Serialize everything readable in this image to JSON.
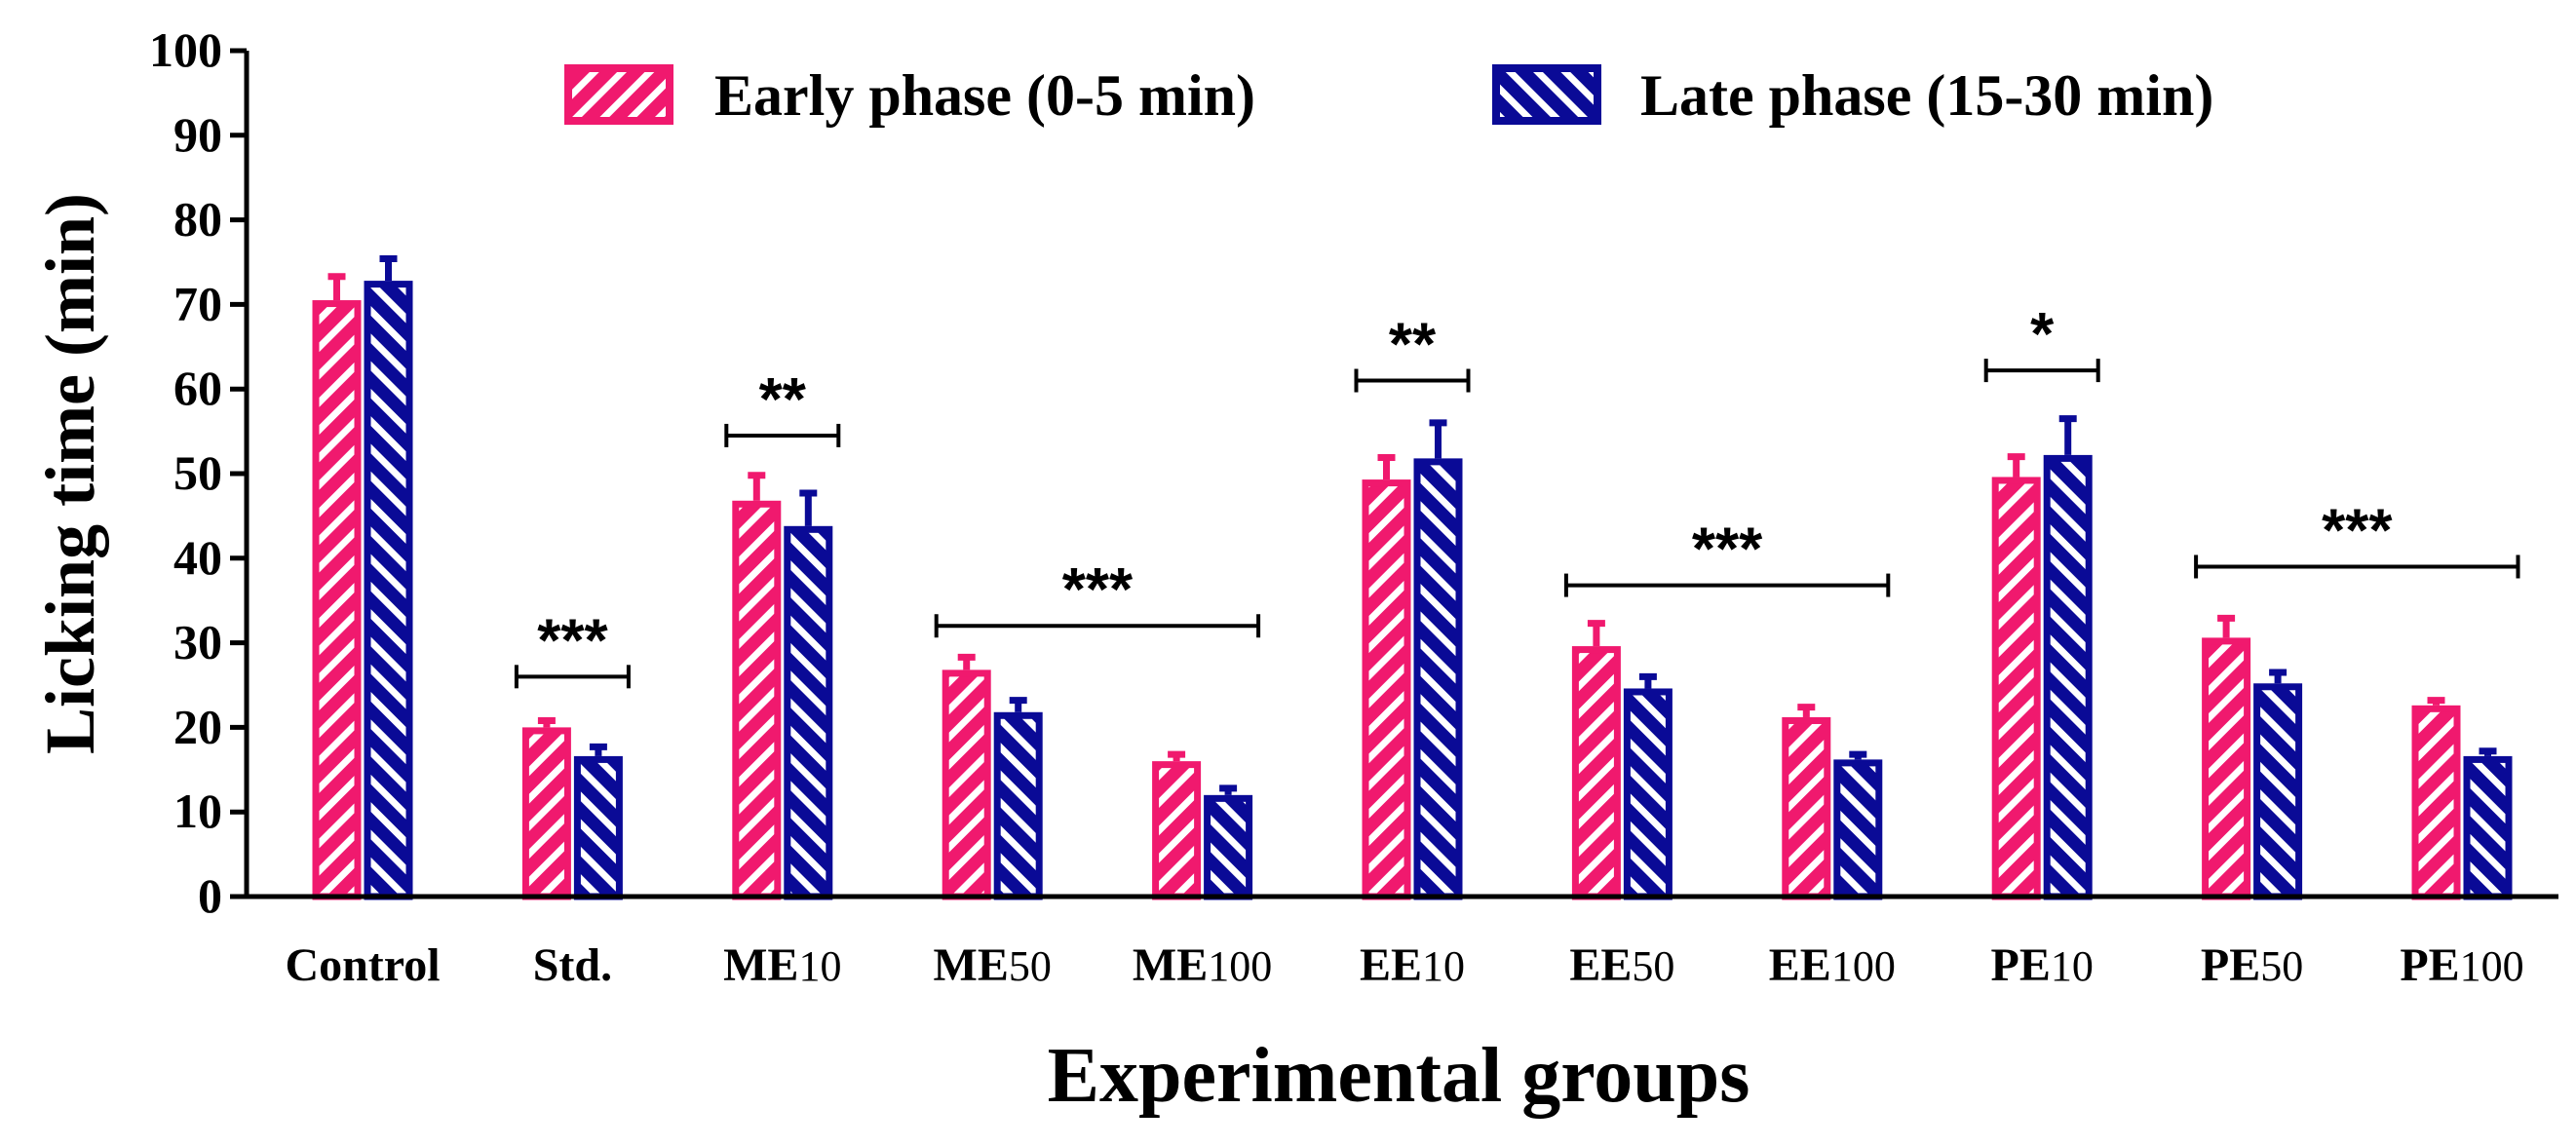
{
  "chart_data": {
    "type": "bar",
    "title": "",
    "xlabel": "Experimental groups",
    "ylabel": "Licking time (min)",
    "ylim": [
      0,
      100
    ],
    "yticks": [
      0,
      10,
      20,
      30,
      40,
      50,
      60,
      70,
      80,
      90,
      100
    ],
    "categories": [
      {
        "main": "Control",
        "sub": ""
      },
      {
        "main": "Std.",
        "sub": ""
      },
      {
        "main": "ME",
        "sub": "10"
      },
      {
        "main": "ME",
        "sub": "50"
      },
      {
        "main": "ME",
        "sub": "100"
      },
      {
        "main": "EE",
        "sub": "10"
      },
      {
        "main": "EE",
        "sub": "50"
      },
      {
        "main": "EE",
        "sub": "100"
      },
      {
        "main": "PE",
        "sub": "10"
      },
      {
        "main": "PE",
        "sub": "50"
      },
      {
        "main": "PE",
        "sub": "100"
      }
    ],
    "series": [
      {
        "name": "Early phase (0-5 min)",
        "color": "#f0196e",
        "values": [
          70.5,
          20.0,
          46.8,
          26.8,
          16.0,
          49.3,
          29.6,
          21.2,
          49.6,
          30.6,
          22.6
        ],
        "errors": [
          2.8,
          0.8,
          3.0,
          1.5,
          0.8,
          2.6,
          2.7,
          1.2,
          2.4,
          2.3,
          0.6
        ]
      },
      {
        "name": "Late phase (15-30 min)",
        "color": "#0a0a96",
        "values": [
          72.8,
          16.6,
          43.8,
          21.8,
          12.0,
          51.8,
          24.6,
          16.2,
          52.2,
          25.2,
          16.6
        ],
        "errors": [
          2.6,
          1.1,
          3.9,
          1.4,
          0.8,
          4.2,
          1.4,
          0.6,
          4.3,
          1.3,
          0.6
        ]
      }
    ],
    "significance": [
      {
        "label": "***",
        "from": 1,
        "to": 1,
        "y": 26.0
      },
      {
        "label": "**",
        "from": 2,
        "to": 2,
        "y": 54.5
      },
      {
        "label": "***",
        "from": 3,
        "to": 4,
        "y": 32.0
      },
      {
        "label": "**",
        "from": 5,
        "to": 5,
        "y": 61.0
      },
      {
        "label": "***",
        "from": 6,
        "to": 7,
        "y": 36.8
      },
      {
        "label": "*",
        "from": 8,
        "to": 8,
        "y": 62.2
      },
      {
        "label": "***",
        "from": 9,
        "to": 10,
        "y": 39.0
      }
    ],
    "legend_position": "top-center"
  }
}
